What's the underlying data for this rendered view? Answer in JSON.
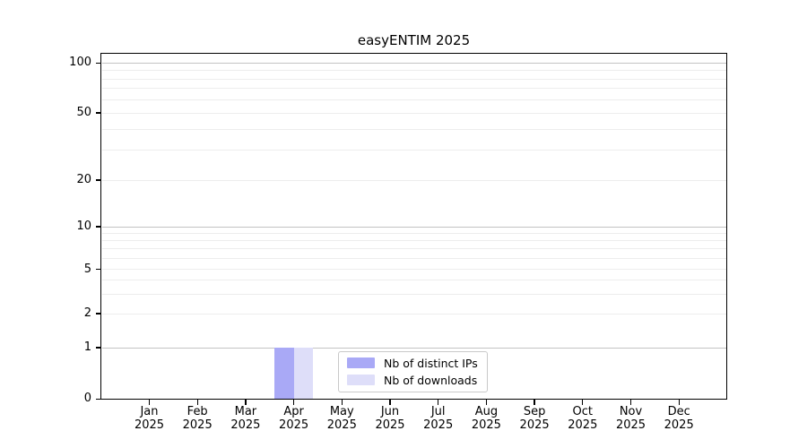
{
  "chart_data": {
    "type": "bar",
    "title": "easyENTIM 2025",
    "months": [
      "Jan",
      "Feb",
      "Mar",
      "Apr",
      "May",
      "Jun",
      "Jul",
      "Aug",
      "Sep",
      "Oct",
      "Nov",
      "Dec"
    ],
    "year": "2025",
    "series": [
      {
        "name": "Nb of distinct IPs",
        "color": "#a9a9f6",
        "values": [
          0,
          0,
          0,
          1,
          0,
          0,
          0,
          0,
          0,
          0,
          0,
          0
        ]
      },
      {
        "name": "Nb of downloads",
        "color": "#dedef9",
        "values": [
          0,
          0,
          0,
          1,
          0,
          0,
          0,
          0,
          0,
          0,
          0,
          0
        ]
      }
    ],
    "y_axis": {
      "scale": "log-like",
      "tick_values": [
        100,
        50,
        20,
        10,
        5,
        2,
        1,
        0
      ],
      "major_grid_values": [
        100,
        10,
        1
      ],
      "minor_grid_values": [
        90,
        80,
        70,
        60,
        50,
        40,
        30,
        20,
        9,
        8,
        7,
        6,
        5,
        4,
        3,
        2
      ]
    },
    "legend_position": "bottom-center",
    "colors": {
      "background": "#ffffff",
      "axis": "#000000",
      "major_grid": "#c3c3c3",
      "minor_grid": "#ededed",
      "legend_border": "#c9c9c9"
    }
  }
}
